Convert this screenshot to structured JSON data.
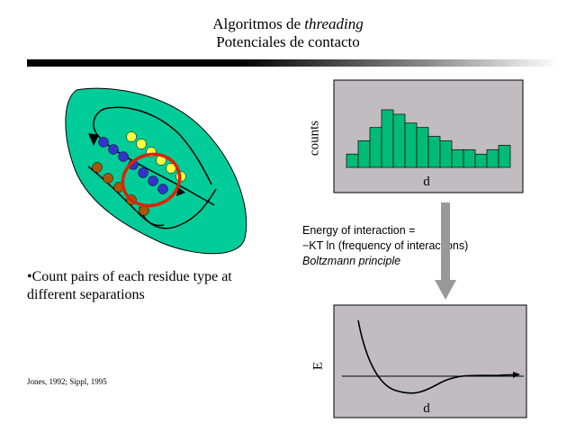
{
  "title": {
    "line1_prefix": "Algoritmos de ",
    "line1_italic": "threading",
    "line2": "Potenciales de contacto"
  },
  "bullet": "•Count pairs of each residue type at different separations",
  "citation": "Jones, 1992; Sippl, 1995",
  "energy_text": {
    "line1": "Energy of interaction =",
    "line2": "−KT ln (frequency of interactions)",
    "line3": "Boltzmann principle"
  },
  "colors": {
    "blob": "#00cc99",
    "panel": "#c0bcc0",
    "bars": "#00bb77",
    "ring": "#dd2200",
    "arrow": "#999999",
    "bead_blue": "#3333cc",
    "bead_yellow": "#ffff44",
    "bead_brown": "#aa5500"
  },
  "chart_data": [
    {
      "type": "bar",
      "ylabel": "counts",
      "xlabel": "d",
      "values": [
        3,
        6,
        9,
        13,
        12,
        10,
        9,
        7,
        6,
        4,
        4,
        3,
        4,
        5
      ]
    },
    {
      "type": "line",
      "ylabel": "E",
      "xlabel": "d"
    }
  ]
}
